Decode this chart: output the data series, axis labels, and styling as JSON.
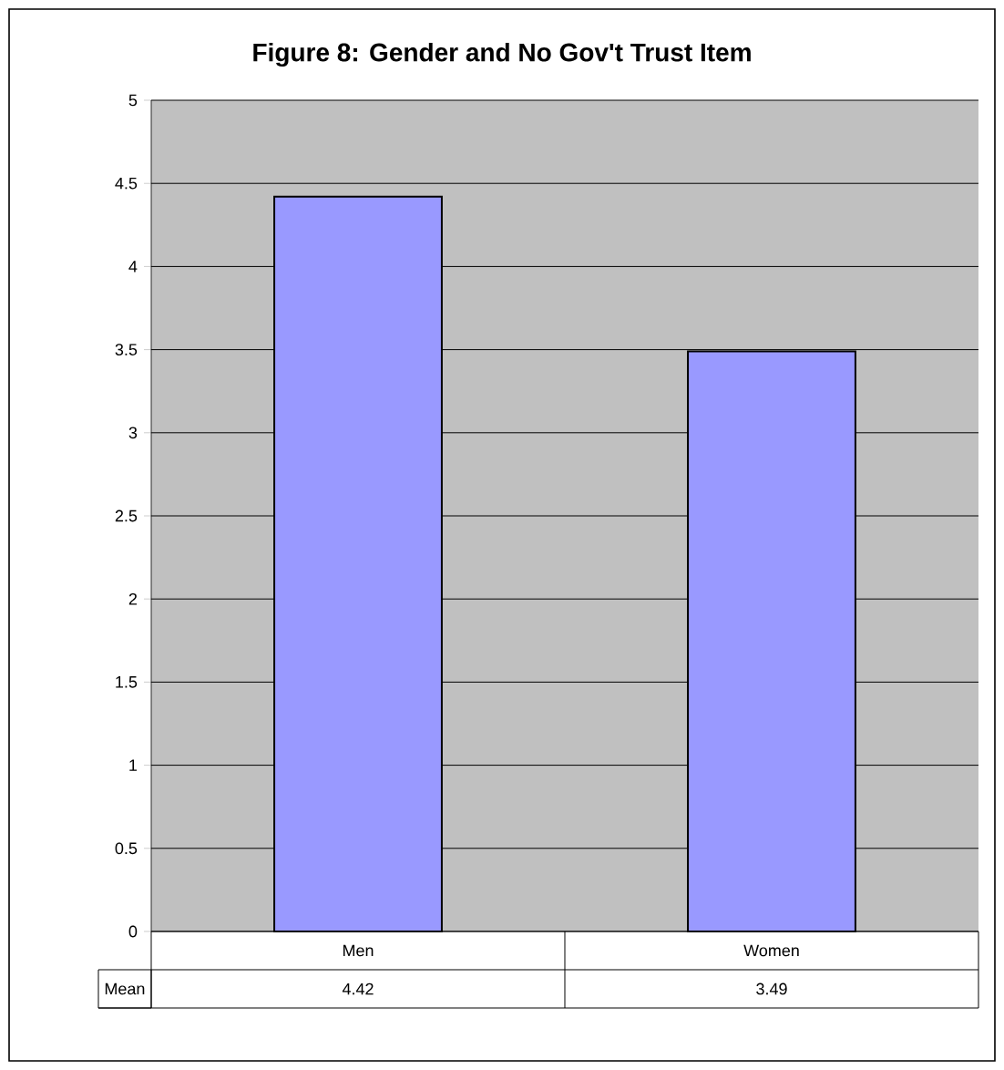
{
  "chart_data": {
    "type": "bar",
    "title": "Figure 8: Gender and No Gov't Trust Item",
    "categories": [
      "Men",
      "Women"
    ],
    "series": [
      {
        "name": "Mean",
        "color": "#9999ff",
        "values": [
          4.42,
          3.49
        ]
      }
    ],
    "ylim": [
      0,
      5
    ],
    "yticks": [
      0,
      0.5,
      1,
      1.5,
      2,
      2.5,
      3,
      3.5,
      4,
      4.5,
      5
    ],
    "grid": "y",
    "data_labels": true
  }
}
